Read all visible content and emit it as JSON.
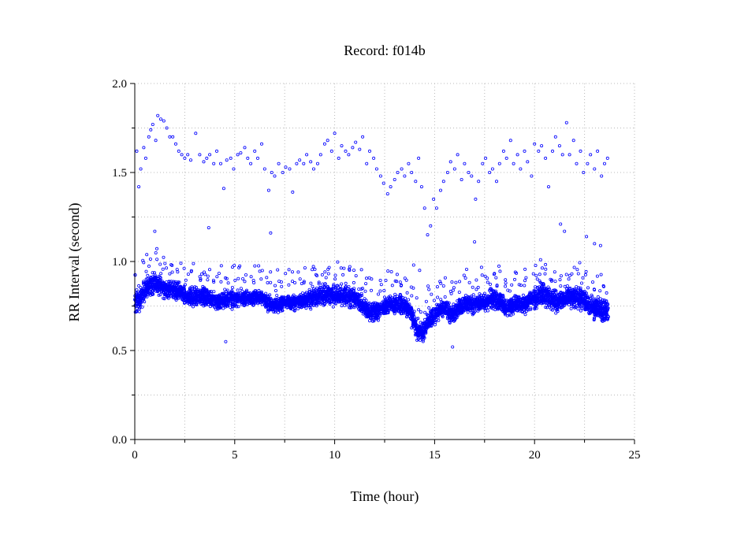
{
  "chart_data": {
    "type": "scatter",
    "title": "Record:  f014b",
    "xlabel": "Time (hour)",
    "ylabel": "RR Interval (second)",
    "xlim": [
      0,
      25
    ],
    "ylim": [
      0,
      2
    ],
    "x_ticks": [
      0,
      5,
      10,
      15,
      20,
      25
    ],
    "x_tick_labels": [
      "0",
      "5",
      "10",
      "15",
      "20",
      "25"
    ],
    "y_ticks": [
      0,
      0.5,
      1.0,
      1.5,
      2.0
    ],
    "y_tick_labels": [
      "0.0",
      "0.5",
      "1.0",
      "1.5",
      "2.0"
    ],
    "x_minor_ticks": [
      2.5,
      7.5,
      12.5,
      17.5,
      22.5
    ],
    "y_minor_ticks": [
      0.25,
      0.75,
      1.25,
      1.75
    ],
    "grid": true,
    "marker_color": "#0000ff",
    "series": [
      {
        "main_band": {
          "x": [
            0.0,
            0.3,
            0.6,
            0.9,
            1.2,
            1.5,
            1.8,
            2.1,
            2.4,
            2.7,
            3.0,
            3.3,
            3.6,
            3.9,
            4.2,
            4.5,
            4.8,
            5.1,
            5.4,
            5.7,
            6.0,
            6.3,
            6.6,
            6.9,
            7.2,
            7.5,
            7.8,
            8.1,
            8.4,
            8.7,
            9.0,
            9.3,
            9.6,
            9.9,
            10.2,
            10.5,
            10.8,
            11.1,
            11.4,
            11.7,
            12.0,
            12.3,
            12.6,
            12.9,
            13.2,
            13.5,
            13.8,
            14.1,
            14.4,
            14.7,
            15.0,
            15.3,
            15.6,
            15.9,
            16.2,
            16.5,
            16.8,
            17.1,
            17.4,
            17.7,
            18.0,
            18.3,
            18.6,
            18.9,
            19.2,
            19.5,
            19.8,
            20.1,
            20.4,
            20.7,
            21.0,
            21.3,
            21.6,
            21.9,
            22.2,
            22.5,
            22.8,
            23.1,
            23.4,
            23.7
          ],
          "y": [
            0.76,
            0.79,
            0.86,
            0.88,
            0.87,
            0.85,
            0.84,
            0.83,
            0.82,
            0.8,
            0.8,
            0.81,
            0.8,
            0.79,
            0.77,
            0.79,
            0.79,
            0.79,
            0.8,
            0.79,
            0.8,
            0.8,
            0.77,
            0.75,
            0.76,
            0.77,
            0.77,
            0.77,
            0.78,
            0.79,
            0.8,
            0.81,
            0.82,
            0.81,
            0.8,
            0.81,
            0.8,
            0.79,
            0.75,
            0.72,
            0.72,
            0.74,
            0.75,
            0.76,
            0.76,
            0.75,
            0.72,
            0.62,
            0.6,
            0.67,
            0.7,
            0.73,
            0.73,
            0.7,
            0.74,
            0.76,
            0.76,
            0.76,
            0.77,
            0.78,
            0.8,
            0.77,
            0.74,
            0.76,
            0.76,
            0.76,
            0.78,
            0.8,
            0.82,
            0.8,
            0.78,
            0.78,
            0.8,
            0.8,
            0.8,
            0.78,
            0.75,
            0.74,
            0.73,
            0.72
          ],
          "spread": [
            0.07,
            0.06,
            0.06,
            0.06,
            0.06,
            0.05,
            0.05,
            0.05,
            0.05,
            0.05,
            0.05,
            0.05,
            0.05,
            0.05,
            0.05,
            0.05,
            0.05,
            0.04,
            0.04,
            0.04,
            0.04,
            0.04,
            0.04,
            0.04,
            0.04,
            0.04,
            0.04,
            0.04,
            0.04,
            0.05,
            0.05,
            0.06,
            0.06,
            0.06,
            0.06,
            0.06,
            0.06,
            0.05,
            0.05,
            0.05,
            0.05,
            0.05,
            0.05,
            0.05,
            0.05,
            0.05,
            0.06,
            0.06,
            0.05,
            0.05,
            0.05,
            0.05,
            0.05,
            0.05,
            0.05,
            0.05,
            0.05,
            0.05,
            0.05,
            0.05,
            0.06,
            0.06,
            0.05,
            0.05,
            0.05,
            0.05,
            0.05,
            0.06,
            0.07,
            0.06,
            0.06,
            0.06,
            0.06,
            0.06,
            0.06,
            0.06,
            0.06,
            0.06,
            0.06,
            0.06
          ]
        },
        "upper_cluster": {
          "x": [
            0.1,
            0.2,
            0.3,
            0.45,
            0.55,
            0.7,
            0.8,
            0.9,
            1.05,
            1.15,
            1.3,
            1.45,
            1.6,
            1.75,
            1.9,
            2.05,
            2.2,
            2.35,
            2.5,
            2.65,
            2.8,
            3.05,
            3.25,
            3.45,
            3.6,
            3.75,
            3.95,
            4.1,
            4.3,
            4.45,
            4.6,
            4.8,
            4.95,
            5.15,
            5.3,
            5.5,
            5.65,
            5.8,
            6.0,
            6.15,
            6.35,
            6.5,
            6.7,
            6.85,
            7.0,
            7.2,
            7.4,
            7.55,
            7.75,
            7.9,
            8.1,
            8.25,
            8.45,
            8.6,
            8.8,
            8.95,
            9.15,
            9.3,
            9.5,
            9.65,
            9.85,
            10.0,
            10.2,
            10.35,
            10.55,
            10.7,
            10.9,
            11.05,
            11.25,
            11.4,
            11.6,
            11.75,
            11.95,
            12.1,
            12.3,
            12.45,
            12.65,
            12.8,
            13.0,
            13.15,
            13.35,
            13.5,
            13.7,
            13.85,
            14.05,
            14.2,
            14.35,
            14.5,
            14.65,
            14.8,
            14.95,
            15.1,
            15.3,
            15.45,
            15.65,
            15.8,
            16.0,
            16.15,
            16.35,
            16.5,
            16.7,
            16.85,
            17.05,
            17.2,
            17.4,
            17.55,
            17.75,
            17.9,
            18.1,
            18.25,
            18.45,
            18.6,
            18.8,
            18.95,
            19.15,
            19.3,
            19.5,
            19.65,
            19.85,
            20.0,
            20.2,
            20.35,
            20.55,
            20.7,
            20.9,
            21.05,
            21.25,
            21.4,
            21.6,
            21.75,
            21.95,
            22.1,
            22.3,
            22.45,
            22.65,
            22.8,
            23.0,
            23.15,
            23.35,
            23.5,
            23.65
          ],
          "y": [
            1.62,
            1.42,
            1.52,
            1.64,
            1.58,
            1.7,
            1.74,
            1.77,
            1.68,
            1.82,
            1.8,
            1.79,
            1.75,
            1.7,
            1.7,
            1.66,
            1.62,
            1.6,
            1.58,
            1.6,
            1.57,
            1.72,
            1.6,
            1.56,
            1.58,
            1.6,
            1.55,
            1.62,
            1.55,
            1.41,
            1.57,
            1.58,
            1.52,
            1.6,
            1.61,
            1.64,
            1.58,
            1.55,
            1.62,
            1.58,
            1.66,
            1.52,
            1.4,
            1.5,
            1.48,
            1.55,
            1.5,
            1.53,
            1.52,
            1.39,
            1.55,
            1.57,
            1.55,
            1.6,
            1.56,
            1.52,
            1.55,
            1.6,
            1.66,
            1.68,
            1.62,
            1.72,
            1.58,
            1.65,
            1.62,
            1.6,
            1.64,
            1.67,
            1.63,
            1.7,
            1.55,
            1.62,
            1.58,
            1.52,
            1.48,
            1.44,
            1.38,
            1.42,
            1.46,
            1.5,
            1.52,
            1.48,
            1.55,
            1.5,
            1.45,
            1.58,
            1.42,
            1.3,
            1.15,
            1.2,
            1.35,
            1.3,
            1.4,
            1.45,
            1.5,
            1.56,
            1.52,
            1.6,
            1.46,
            1.55,
            1.5,
            1.48,
            1.35,
            1.45,
            1.55,
            1.58,
            1.5,
            1.52,
            1.45,
            1.55,
            1.62,
            1.58,
            1.68,
            1.55,
            1.6,
            1.52,
            1.62,
            1.56,
            1.48,
            1.66,
            1.62,
            1.65,
            1.58,
            1.42,
            1.62,
            1.7,
            1.65,
            1.6,
            1.78,
            1.6,
            1.68,
            1.55,
            1.62,
            1.5,
            1.55,
            1.6,
            1.52,
            1.62,
            1.48,
            1.55,
            1.58
          ],
          "note": "visible upper cluster of points around 1.4-1.8 s"
        },
        "outliers": {
          "x": [
            1.0,
            3.7,
            6.8,
            4.55,
            15.9,
            17.0,
            20.3,
            21.3,
            21.5,
            22.6,
            23.0,
            23.3,
            13.95,
            14.25
          ],
          "y": [
            1.17,
            1.19,
            1.16,
            0.55,
            0.52,
            1.11,
            1.01,
            1.21,
            1.17,
            1.14,
            1.1,
            1.09,
            0.98,
            0.95
          ]
        }
      }
    ]
  }
}
